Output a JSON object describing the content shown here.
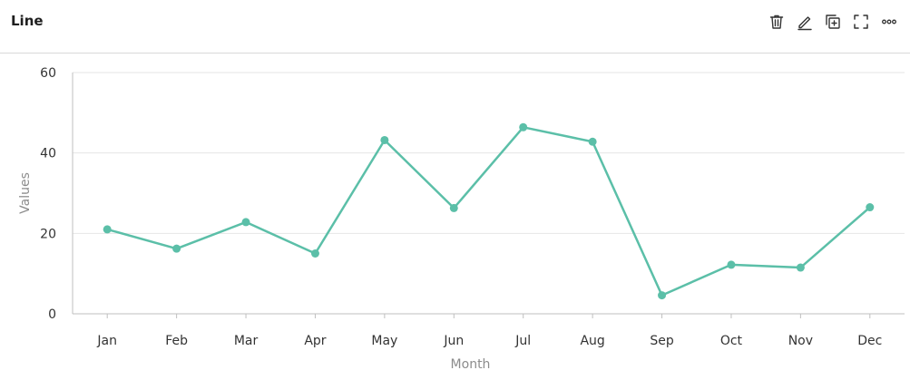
{
  "header": {
    "title": "Line",
    "actions": [
      {
        "icon": "trash-icon",
        "label": "delete"
      },
      {
        "icon": "pencil-icon",
        "label": "edit"
      },
      {
        "icon": "duplicate-icon",
        "label": "duplicate"
      },
      {
        "icon": "fullscreen-icon",
        "label": "fullscreen"
      },
      {
        "icon": "more-icon",
        "label": "more"
      }
    ]
  },
  "colors": {
    "series": "#5bbfa8",
    "grid": "#e6e6e6",
    "axis": "#bfbfbf"
  },
  "chart_data": {
    "type": "line",
    "categories": [
      "Jan",
      "Feb",
      "Mar",
      "Apr",
      "May",
      "Jun",
      "Jul",
      "Aug",
      "Sep",
      "Oct",
      "Nov",
      "Dec"
    ],
    "series": [
      {
        "values": [
          21,
          16.2,
          22.8,
          15,
          43.2,
          26.3,
          46.4,
          42.8,
          4.6,
          12.2,
          11.5,
          26.5
        ]
      }
    ],
    "xlabel": "Month",
    "ylabel": "Values",
    "ylim": [
      0,
      60
    ],
    "yticks": [
      0,
      20,
      40,
      60
    ],
    "grid": true
  }
}
